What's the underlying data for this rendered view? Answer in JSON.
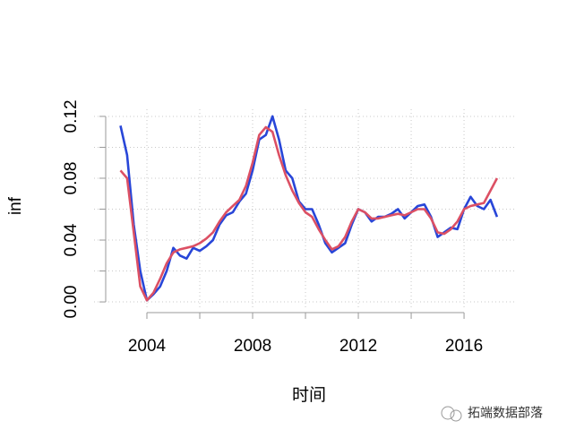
{
  "chart_data": {
    "type": "line",
    "x_label": "时间",
    "y_label": "inf",
    "x": [
      2003,
      2003.25,
      2003.5,
      2003.75,
      2004,
      2004.25,
      2004.5,
      2004.75,
      2005,
      2005.25,
      2005.5,
      2005.75,
      2006,
      2006.25,
      2006.5,
      2006.75,
      2007,
      2007.25,
      2007.5,
      2007.75,
      2008,
      2008.25,
      2008.5,
      2008.75,
      2009,
      2009.25,
      2009.5,
      2009.75,
      2010,
      2010.25,
      2010.5,
      2010.75,
      2011,
      2011.25,
      2011.5,
      2011.75,
      2012,
      2012.25,
      2012.5,
      2012.75,
      2013,
      2013.25,
      2013.5,
      2013.75,
      2014,
      2014.25,
      2014.5,
      2014.75,
      2015,
      2015.25,
      2015.5,
      2015.75,
      2016,
      2016.25,
      2016.5,
      2016.75,
      2017,
      2017.25
    ],
    "series": [
      {
        "color": "#2846d8",
        "values": [
          0.114,
          0.095,
          0.05,
          0.02,
          0.001,
          0.005,
          0.01,
          0.02,
          0.035,
          0.03,
          0.028,
          0.035,
          0.033,
          0.036,
          0.04,
          0.05,
          0.056,
          0.058,
          0.065,
          0.07,
          0.085,
          0.105,
          0.108,
          0.12,
          0.105,
          0.085,
          0.08,
          0.065,
          0.06,
          0.06,
          0.05,
          0.038,
          0.032,
          0.035,
          0.038,
          0.05,
          0.06,
          0.058,
          0.052,
          0.055,
          0.055,
          0.057,
          0.06,
          0.054,
          0.058,
          0.062,
          0.063,
          0.055,
          0.042,
          0.045,
          0.048,
          0.047,
          0.06,
          0.068,
          0.062,
          0.06,
          0.066,
          0.055
        ]
      },
      {
        "color": "#dc5064",
        "values": [
          0.085,
          0.08,
          0.045,
          0.01,
          0.001,
          0.006,
          0.015,
          0.025,
          0.032,
          0.034,
          0.035,
          0.036,
          0.038,
          0.041,
          0.045,
          0.052,
          0.058,
          0.062,
          0.066,
          0.075,
          0.09,
          0.108,
          0.113,
          0.11,
          0.095,
          0.082,
          0.072,
          0.064,
          0.058,
          0.055,
          0.047,
          0.04,
          0.034,
          0.036,
          0.042,
          0.052,
          0.06,
          0.058,
          0.054,
          0.054,
          0.055,
          0.056,
          0.057,
          0.056,
          0.058,
          0.06,
          0.06,
          0.054,
          0.045,
          0.044,
          0.047,
          0.052,
          0.06,
          0.062,
          0.063,
          0.064,
          0.072,
          0.08
        ]
      }
    ],
    "xlim": [
      2002,
      2017.93
    ],
    "ylim": [
      -0.0046,
      0.1246
    ],
    "xticks": [
      2004,
      2008,
      2012,
      2016
    ],
    "xticks_minor": [
      2006,
      2010,
      2014
    ],
    "yticks": [
      {
        "value": 0,
        "label": "0.00"
      },
      0.04,
      0.08,
      0.12
    ],
    "yticks_minor": [
      0.02,
      0.06,
      0.1
    ],
    "grid": true,
    "watermark": "拓端数据部落"
  }
}
